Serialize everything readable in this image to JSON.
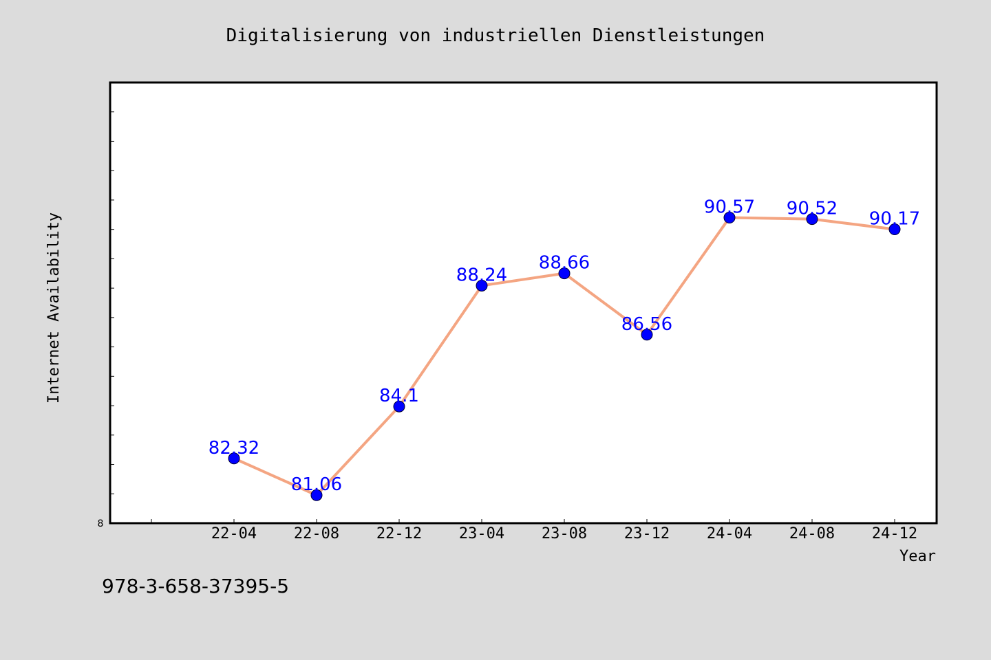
{
  "chart_data": {
    "type": "line",
    "title": "Digitalisierung von industriellen Dienstleistungen",
    "xlabel": "Year",
    "ylabel": "Internet Availability",
    "categories": [
      "22-04",
      "22-08",
      "22-12",
      "23-04",
      "23-08",
      "23-12",
      "24-04",
      "24-08",
      "24-12"
    ],
    "series": [
      {
        "values": [
          82.32,
          81.06,
          84.1,
          88.24,
          88.66,
          86.56,
          90.57,
          90.52,
          90.17
        ],
        "labels": [
          "82.32",
          "81.06",
          "84.1",
          "88.24",
          "88.66",
          "86.56",
          "90.57",
          "90.52",
          "90.17"
        ]
      }
    ],
    "ylim": [
      80.1,
      95.2
    ],
    "y_min_label": "8",
    "grid": false,
    "legend": "none",
    "line_color": "#f4a582",
    "marker_color": "#0000ff",
    "label_color": "#0000ff",
    "plot_background": "#ffffff",
    "page_background": "#dcdcdc"
  },
  "footer": {
    "isbn": "978-3-658-37395-5"
  }
}
